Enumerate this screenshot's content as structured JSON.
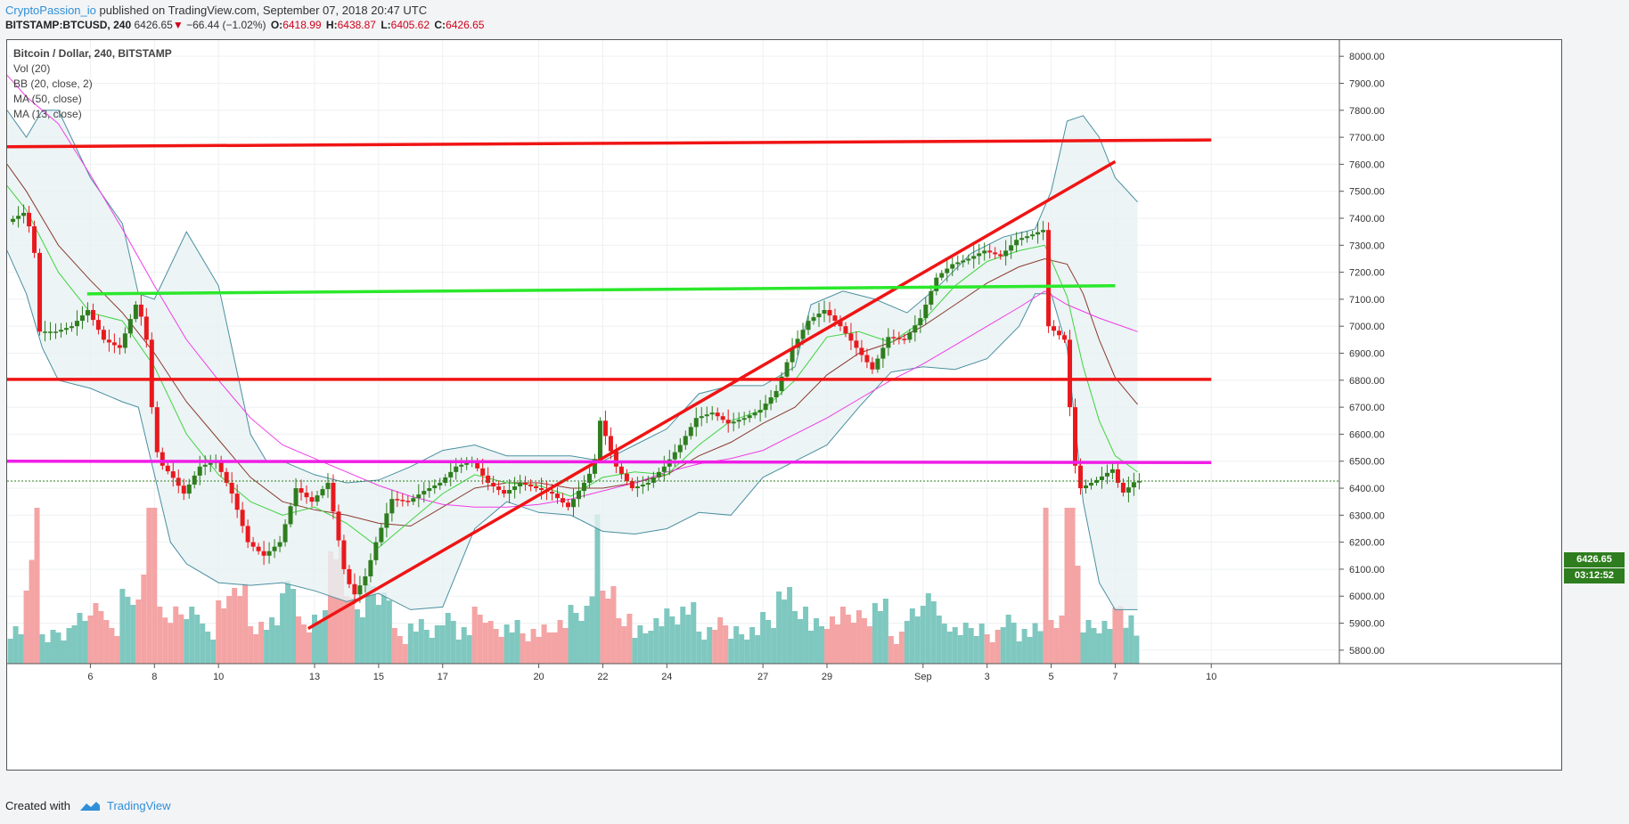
{
  "header": {
    "author": "CryptoPassion_io",
    "published_text": "published on TradingView.com, September 07, 2018 20:47 UTC",
    "symbol": "BITSTAMP:BTCUSD, 240",
    "last": "6426.65",
    "change_arrow": "▼",
    "change": "−66.44 (−1.02%)",
    "o_label": "O:",
    "o": "6418.99",
    "h_label": "H:",
    "h": "6438.87",
    "l_label": "L:",
    "l": "6405.62",
    "c_label": "C:",
    "c": "6426.65"
  },
  "legend": {
    "title": "Bitcoin / Dollar, 240, BITSTAMP",
    "items": [
      "Vol (20)",
      "BB (20, close, 2)",
      "MA (50, close)",
      "MA (13, close)"
    ]
  },
  "price_tag": {
    "price": "6426.65",
    "countdown": "03:12:52",
    "color": "#2e7d1e"
  },
  "footer": {
    "created_with": "Created with",
    "brand": "TradingView"
  },
  "colors": {
    "bull": "#2e7d1e",
    "bear": "#e8191e",
    "vol_bull": "#7fc8c0",
    "vol_bear": "#f4a4a4",
    "bb_band": "#4a8fa0",
    "bb_fill": "#e7f1f2",
    "ma50": "#f03ce6",
    "ma13": "#3fd43f",
    "bb_basis": "#8b3a2f",
    "line_red": "#f01414",
    "line_green": "#2be82b",
    "line_magenta": "#f01ee6"
  },
  "chart_data": {
    "type": "candlestick",
    "title": "Bitcoin / Dollar, 240, BITSTAMP",
    "interval": "240",
    "ylim": [
      5750,
      8060
    ],
    "y_ticks": [
      5800,
      5900,
      6000,
      6100,
      6200,
      6300,
      6400,
      6500,
      6600,
      6700,
      6800,
      6900,
      7000,
      7100,
      7200,
      7300,
      7400,
      7500,
      7600,
      7700,
      7800,
      7900,
      8000
    ],
    "x_ticks": [
      {
        "label": "6",
        "day": 6
      },
      {
        "label": "8",
        "day": 8
      },
      {
        "label": "10",
        "day": 10
      },
      {
        "label": "13",
        "day": 13
      },
      {
        "label": "15",
        "day": 15
      },
      {
        "label": "17",
        "day": 17
      },
      {
        "label": "20",
        "day": 20
      },
      {
        "label": "22",
        "day": 22
      },
      {
        "label": "24",
        "day": 24
      },
      {
        "label": "27",
        "day": 27
      },
      {
        "label": "29",
        "day": 29
      },
      {
        "label": "Sep",
        "day": 32
      },
      {
        "label": "3",
        "day": 34
      },
      {
        "label": "5",
        "day": 36
      },
      {
        "label": "7",
        "day": 38
      },
      {
        "label": "10",
        "day": 41
      }
    ],
    "x_range_days": [
      3.4,
      45.0
    ],
    "price_anchors": [
      [
        3.4,
        7380
      ],
      [
        4.0,
        7420
      ],
      [
        4.3,
        7330
      ],
      [
        4.5,
        6980
      ],
      [
        5.0,
        6980
      ],
      [
        5.5,
        7000
      ],
      [
        6.0,
        7060
      ],
      [
        6.5,
        6950
      ],
      [
        7.0,
        6920
      ],
      [
        7.5,
        7080
      ],
      [
        7.8,
        7000
      ],
      [
        8.0,
        6700
      ],
      [
        8.2,
        6500
      ],
      [
        8.6,
        6450
      ],
      [
        9.0,
        6380
      ],
      [
        9.5,
        6480
      ],
      [
        10.0,
        6500
      ],
      [
        10.5,
        6380
      ],
      [
        11.0,
        6200
      ],
      [
        11.5,
        6150
      ],
      [
        12.0,
        6200
      ],
      [
        12.5,
        6400
      ],
      [
        13.0,
        6350
      ],
      [
        13.5,
        6420
      ],
      [
        14.0,
        6100
      ],
      [
        14.3,
        6000
      ],
      [
        14.7,
        6080
      ],
      [
        15.0,
        6200
      ],
      [
        15.5,
        6360
      ],
      [
        16.0,
        6350
      ],
      [
        16.5,
        6390
      ],
      [
        17.0,
        6420
      ],
      [
        17.5,
        6480
      ],
      [
        18.0,
        6500
      ],
      [
        18.5,
        6420
      ],
      [
        19.0,
        6380
      ],
      [
        19.5,
        6420
      ],
      [
        20.0,
        6400
      ],
      [
        20.5,
        6380
      ],
      [
        21.0,
        6330
      ],
      [
        21.5,
        6420
      ],
      [
        21.8,
        6480
      ],
      [
        22.0,
        6650
      ],
      [
        22.5,
        6480
      ],
      [
        23.0,
        6400
      ],
      [
        23.5,
        6420
      ],
      [
        24.0,
        6480
      ],
      [
        24.5,
        6560
      ],
      [
        25.0,
        6660
      ],
      [
        25.5,
        6680
      ],
      [
        26.0,
        6640
      ],
      [
        26.5,
        6660
      ],
      [
        27.0,
        6690
      ],
      [
        27.5,
        6760
      ],
      [
        28.0,
        6920
      ],
      [
        28.5,
        7020
      ],
      [
        29.0,
        7060
      ],
      [
        29.5,
        7000
      ],
      [
        30.0,
        6920
      ],
      [
        30.5,
        6840
      ],
      [
        31.0,
        6960
      ],
      [
        31.5,
        6950
      ],
      [
        32.0,
        7030
      ],
      [
        32.5,
        7180
      ],
      [
        33.0,
        7230
      ],
      [
        33.5,
        7250
      ],
      [
        34.0,
        7280
      ],
      [
        34.5,
        7260
      ],
      [
        35.0,
        7320
      ],
      [
        35.5,
        7340
      ],
      [
        35.9,
        7360
      ],
      [
        36.0,
        7000
      ],
      [
        36.5,
        6950
      ],
      [
        36.8,
        6500
      ],
      [
        37.0,
        6400
      ],
      [
        37.5,
        6430
      ],
      [
        38.0,
        6470
      ],
      [
        38.3,
        6380
      ],
      [
        38.7,
        6426
      ]
    ],
    "bb": {
      "name": "BB (20, close, 2)",
      "upper": [
        [
          3.4,
          7800
        ],
        [
          4.0,
          7700
        ],
        [
          4.5,
          7800
        ],
        [
          5.0,
          7800
        ],
        [
          6.0,
          7550
        ],
        [
          7.0,
          7380
        ],
        [
          7.5,
          7120
        ],
        [
          8.0,
          7100
        ],
        [
          9.0,
          7350
        ],
        [
          10.0,
          7150
        ],
        [
          11.0,
          6600
        ],
        [
          11.5,
          6500
        ],
        [
          12.0,
          6500
        ],
        [
          13.0,
          6450
        ],
        [
          14.0,
          6420
        ],
        [
          15.0,
          6430
        ],
        [
          16.0,
          6480
        ],
        [
          17.0,
          6540
        ],
        [
          18.0,
          6560
        ],
        [
          19.0,
          6520
        ],
        [
          20.0,
          6520
        ],
        [
          21.0,
          6520
        ],
        [
          22.0,
          6500
        ],
        [
          23.0,
          6560
        ],
        [
          24.0,
          6620
        ],
        [
          25.0,
          6750
        ],
        [
          26.0,
          6780
        ],
        [
          27.0,
          6780
        ],
        [
          28.0,
          6850
        ],
        [
          28.5,
          7080
        ],
        [
          29.5,
          7130
        ],
        [
          30.5,
          7100
        ],
        [
          31.5,
          7050
        ],
        [
          32.5,
          7150
        ],
        [
          33.5,
          7270
        ],
        [
          34.5,
          7330
        ],
        [
          35.5,
          7360
        ],
        [
          36.0,
          7500
        ],
        [
          36.5,
          7760
        ],
        [
          37.0,
          7780
        ],
        [
          37.5,
          7700
        ],
        [
          38.0,
          7550
        ],
        [
          38.7,
          7460
        ]
      ],
      "lower": [
        [
          3.4,
          7280
        ],
        [
          4.0,
          7120
        ],
        [
          4.5,
          6920
        ],
        [
          5.0,
          6800
        ],
        [
          6.0,
          6770
        ],
        [
          7.0,
          6720
        ],
        [
          7.5,
          6700
        ],
        [
          8.0,
          6450
        ],
        [
          8.5,
          6200
        ],
        [
          9.0,
          6120
        ],
        [
          10.0,
          6050
        ],
        [
          11.0,
          6040
        ],
        [
          12.0,
          6050
        ],
        [
          13.0,
          6020
        ],
        [
          14.0,
          5980
        ],
        [
          15.0,
          6010
        ],
        [
          16.0,
          5950
        ],
        [
          17.0,
          5960
        ],
        [
          18.0,
          6250
        ],
        [
          19.0,
          6350
        ],
        [
          20.0,
          6310
        ],
        [
          21.0,
          6300
        ],
        [
          22.0,
          6240
        ],
        [
          23.0,
          6230
        ],
        [
          24.0,
          6250
        ],
        [
          25.0,
          6310
        ],
        [
          26.0,
          6300
        ],
        [
          27.0,
          6440
        ],
        [
          28.0,
          6500
        ],
        [
          29.0,
          6560
        ],
        [
          30.0,
          6700
        ],
        [
          31.0,
          6830
        ],
        [
          32.0,
          6850
        ],
        [
          33.0,
          6840
        ],
        [
          34.0,
          6880
        ],
        [
          35.0,
          7000
        ],
        [
          35.5,
          7120
        ],
        [
          36.0,
          7120
        ],
        [
          36.5,
          6920
        ],
        [
          37.0,
          6350
        ],
        [
          37.5,
          6050
        ],
        [
          38.0,
          5950
        ],
        [
          38.7,
          5950
        ]
      ]
    },
    "ma50": {
      "name": "MA (50, close)",
      "values": [
        [
          3.4,
          7930
        ],
        [
          4.0,
          7850
        ],
        [
          5.0,
          7750
        ],
        [
          6.0,
          7560
        ],
        [
          7.0,
          7360
        ],
        [
          8.0,
          7150
        ],
        [
          9.0,
          6950
        ],
        [
          10.0,
          6800
        ],
        [
          11.0,
          6660
        ],
        [
          12.0,
          6560
        ],
        [
          13.0,
          6510
        ],
        [
          14.0,
          6460
        ],
        [
          15.0,
          6410
        ],
        [
          16.0,
          6370
        ],
        [
          17.0,
          6340
        ],
        [
          18.0,
          6330
        ],
        [
          19.0,
          6330
        ],
        [
          20.0,
          6340
        ],
        [
          21.0,
          6360
        ],
        [
          22.0,
          6390
        ],
        [
          23.0,
          6420
        ],
        [
          24.0,
          6460
        ],
        [
          25.0,
          6490
        ],
        [
          26.0,
          6510
        ],
        [
          27.0,
          6540
        ],
        [
          28.0,
          6600
        ],
        [
          29.0,
          6660
        ],
        [
          30.0,
          6730
        ],
        [
          31.0,
          6800
        ],
        [
          32.0,
          6860
        ],
        [
          33.0,
          6930
        ],
        [
          34.0,
          7000
        ],
        [
          35.0,
          7070
        ],
        [
          35.8,
          7130
        ],
        [
          36.5,
          7080
        ],
        [
          37.5,
          7030
        ],
        [
          38.7,
          6980
        ]
      ]
    },
    "ma13": {
      "name": "MA (13, close)",
      "values": [
        [
          3.4,
          7520
        ],
        [
          4.0,
          7430
        ],
        [
          5.0,
          7200
        ],
        [
          6.0,
          7050
        ],
        [
          7.0,
          7020
        ],
        [
          8.0,
          6850
        ],
        [
          9.0,
          6600
        ],
        [
          10.0,
          6450
        ],
        [
          11.0,
          6350
        ],
        [
          12.0,
          6300
        ],
        [
          13.0,
          6330
        ],
        [
          14.0,
          6270
        ],
        [
          15.0,
          6180
        ],
        [
          16.0,
          6280
        ],
        [
          17.0,
          6380
        ],
        [
          18.0,
          6450
        ],
        [
          19.0,
          6420
        ],
        [
          20.0,
          6410
        ],
        [
          21.0,
          6370
        ],
        [
          22.0,
          6440
        ],
        [
          23.0,
          6460
        ],
        [
          24.0,
          6450
        ],
        [
          25.0,
          6560
        ],
        [
          26.0,
          6650
        ],
        [
          27.0,
          6690
        ],
        [
          28.0,
          6800
        ],
        [
          29.0,
          6960
        ],
        [
          30.0,
          6980
        ],
        [
          31.0,
          6940
        ],
        [
          32.0,
          7020
        ],
        [
          33.0,
          7150
        ],
        [
          34.0,
          7240
        ],
        [
          35.0,
          7280
        ],
        [
          35.8,
          7300
        ],
        [
          36.5,
          7110
        ],
        [
          37.0,
          6850
        ],
        [
          37.5,
          6650
        ],
        [
          38.0,
          6520
        ],
        [
          38.7,
          6460
        ]
      ]
    },
    "basis": {
      "values": [
        [
          3.4,
          7600
        ],
        [
          4.0,
          7500
        ],
        [
          5.0,
          7300
        ],
        [
          6.0,
          7170
        ],
        [
          7.0,
          7050
        ],
        [
          8.0,
          6900
        ],
        [
          9.0,
          6720
        ],
        [
          10.0,
          6580
        ],
        [
          11.0,
          6440
        ],
        [
          12.0,
          6350
        ],
        [
          13.0,
          6320
        ],
        [
          14.0,
          6300
        ],
        [
          15.0,
          6270
        ],
        [
          16.0,
          6260
        ],
        [
          17.0,
          6330
        ],
        [
          18.0,
          6400
        ],
        [
          19.0,
          6420
        ],
        [
          20.0,
          6420
        ],
        [
          21.0,
          6400
        ],
        [
          22.0,
          6400
        ],
        [
          23.0,
          6420
        ],
        [
          24.0,
          6450
        ],
        [
          25.0,
          6520
        ],
        [
          26.0,
          6570
        ],
        [
          27.0,
          6640
        ],
        [
          28.0,
          6700
        ],
        [
          29.0,
          6820
        ],
        [
          30.0,
          6900
        ],
        [
          31.0,
          6940
        ],
        [
          32.0,
          7000
        ],
        [
          33.0,
          7080
        ],
        [
          34.0,
          7160
        ],
        [
          35.0,
          7220
        ],
        [
          35.8,
          7250
        ],
        [
          36.5,
          7230
        ],
        [
          37.0,
          7120
        ],
        [
          37.5,
          6950
        ],
        [
          38.0,
          6810
        ],
        [
          38.7,
          6710
        ]
      ]
    },
    "drawings": [
      {
        "name": "resistance-line-7700",
        "color": "#f01414",
        "points": [
          [
            3.4,
            7665
          ],
          [
            41.0,
            7690
          ]
        ]
      },
      {
        "name": "trendline-rising",
        "color": "#f01414",
        "points": [
          [
            12.8,
            5880
          ],
          [
            38.0,
            7610
          ]
        ]
      },
      {
        "name": "support-line-7150",
        "color": "#2be82b",
        "points": [
          [
            5.9,
            7120
          ],
          [
            38.0,
            7150
          ]
        ]
      },
      {
        "name": "level-line-6800",
        "color": "#f01414",
        "points": [
          [
            3.4,
            6803
          ],
          [
            41.0,
            6803
          ]
        ]
      },
      {
        "name": "level-line-6500",
        "color": "#f01ee6",
        "points": [
          [
            3.4,
            6500
          ],
          [
            41.0,
            6495
          ]
        ]
      }
    ]
  }
}
